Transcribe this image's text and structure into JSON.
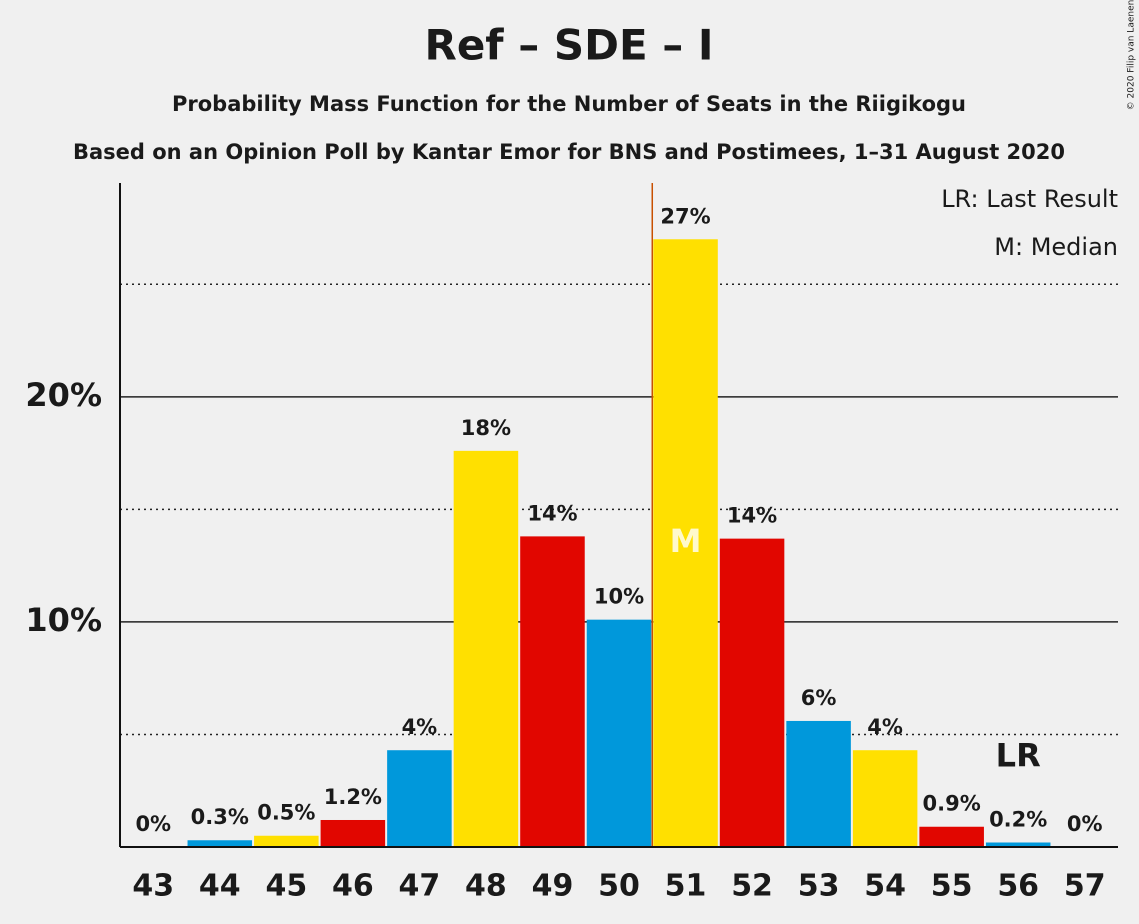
{
  "chart_data": {
    "type": "bar",
    "title": "Ref – SDE – I",
    "subtitle": "Probability Mass Function for the Number of Seats in the Riigikogu",
    "caption": "Based on an Opinion Poll by Kantar Emor for BNS and Postimees, 1–31 August 2020",
    "categories": [
      "43",
      "44",
      "45",
      "46",
      "47",
      "48",
      "49",
      "50",
      "51",
      "52",
      "53",
      "54",
      "55",
      "56",
      "57"
    ],
    "values": [
      0,
      0.3,
      0.5,
      1.2,
      4.3,
      17.6,
      13.8,
      10.1,
      27,
      13.7,
      5.6,
      4.3,
      0.9,
      0.2,
      0
    ],
    "value_labels": [
      "0%",
      "0.3%",
      "0.5%",
      "1.2%",
      "4%",
      "18%",
      "14%",
      "10%",
      "27%",
      "14%",
      "6%",
      "4%",
      "0.9%",
      "0.2%",
      "0%"
    ],
    "colors": [
      "#e10600",
      "#0098db",
      "#ffe000",
      "#e10600",
      "#0098db",
      "#ffe000",
      "#e10600",
      "#0098db",
      "#ffe000",
      "#e10600",
      "#0098db",
      "#ffe000",
      "#e10600",
      "#0098db",
      "#ffe000"
    ],
    "ylim": [
      0,
      29.5
    ],
    "yticks": [
      {
        "value": 10,
        "label": "10%"
      },
      {
        "value": 20,
        "label": "20%"
      }
    ],
    "minor_yticks": [
      5,
      15,
      25
    ],
    "grid": true,
    "median": {
      "category": "51",
      "marker": "M",
      "legend": "M: Median",
      "color": "#c85000"
    },
    "last_result": {
      "category": "56",
      "marker": "LR",
      "legend": "LR: Last Result"
    },
    "copyright": "© 2020 Filip van Laenen"
  }
}
